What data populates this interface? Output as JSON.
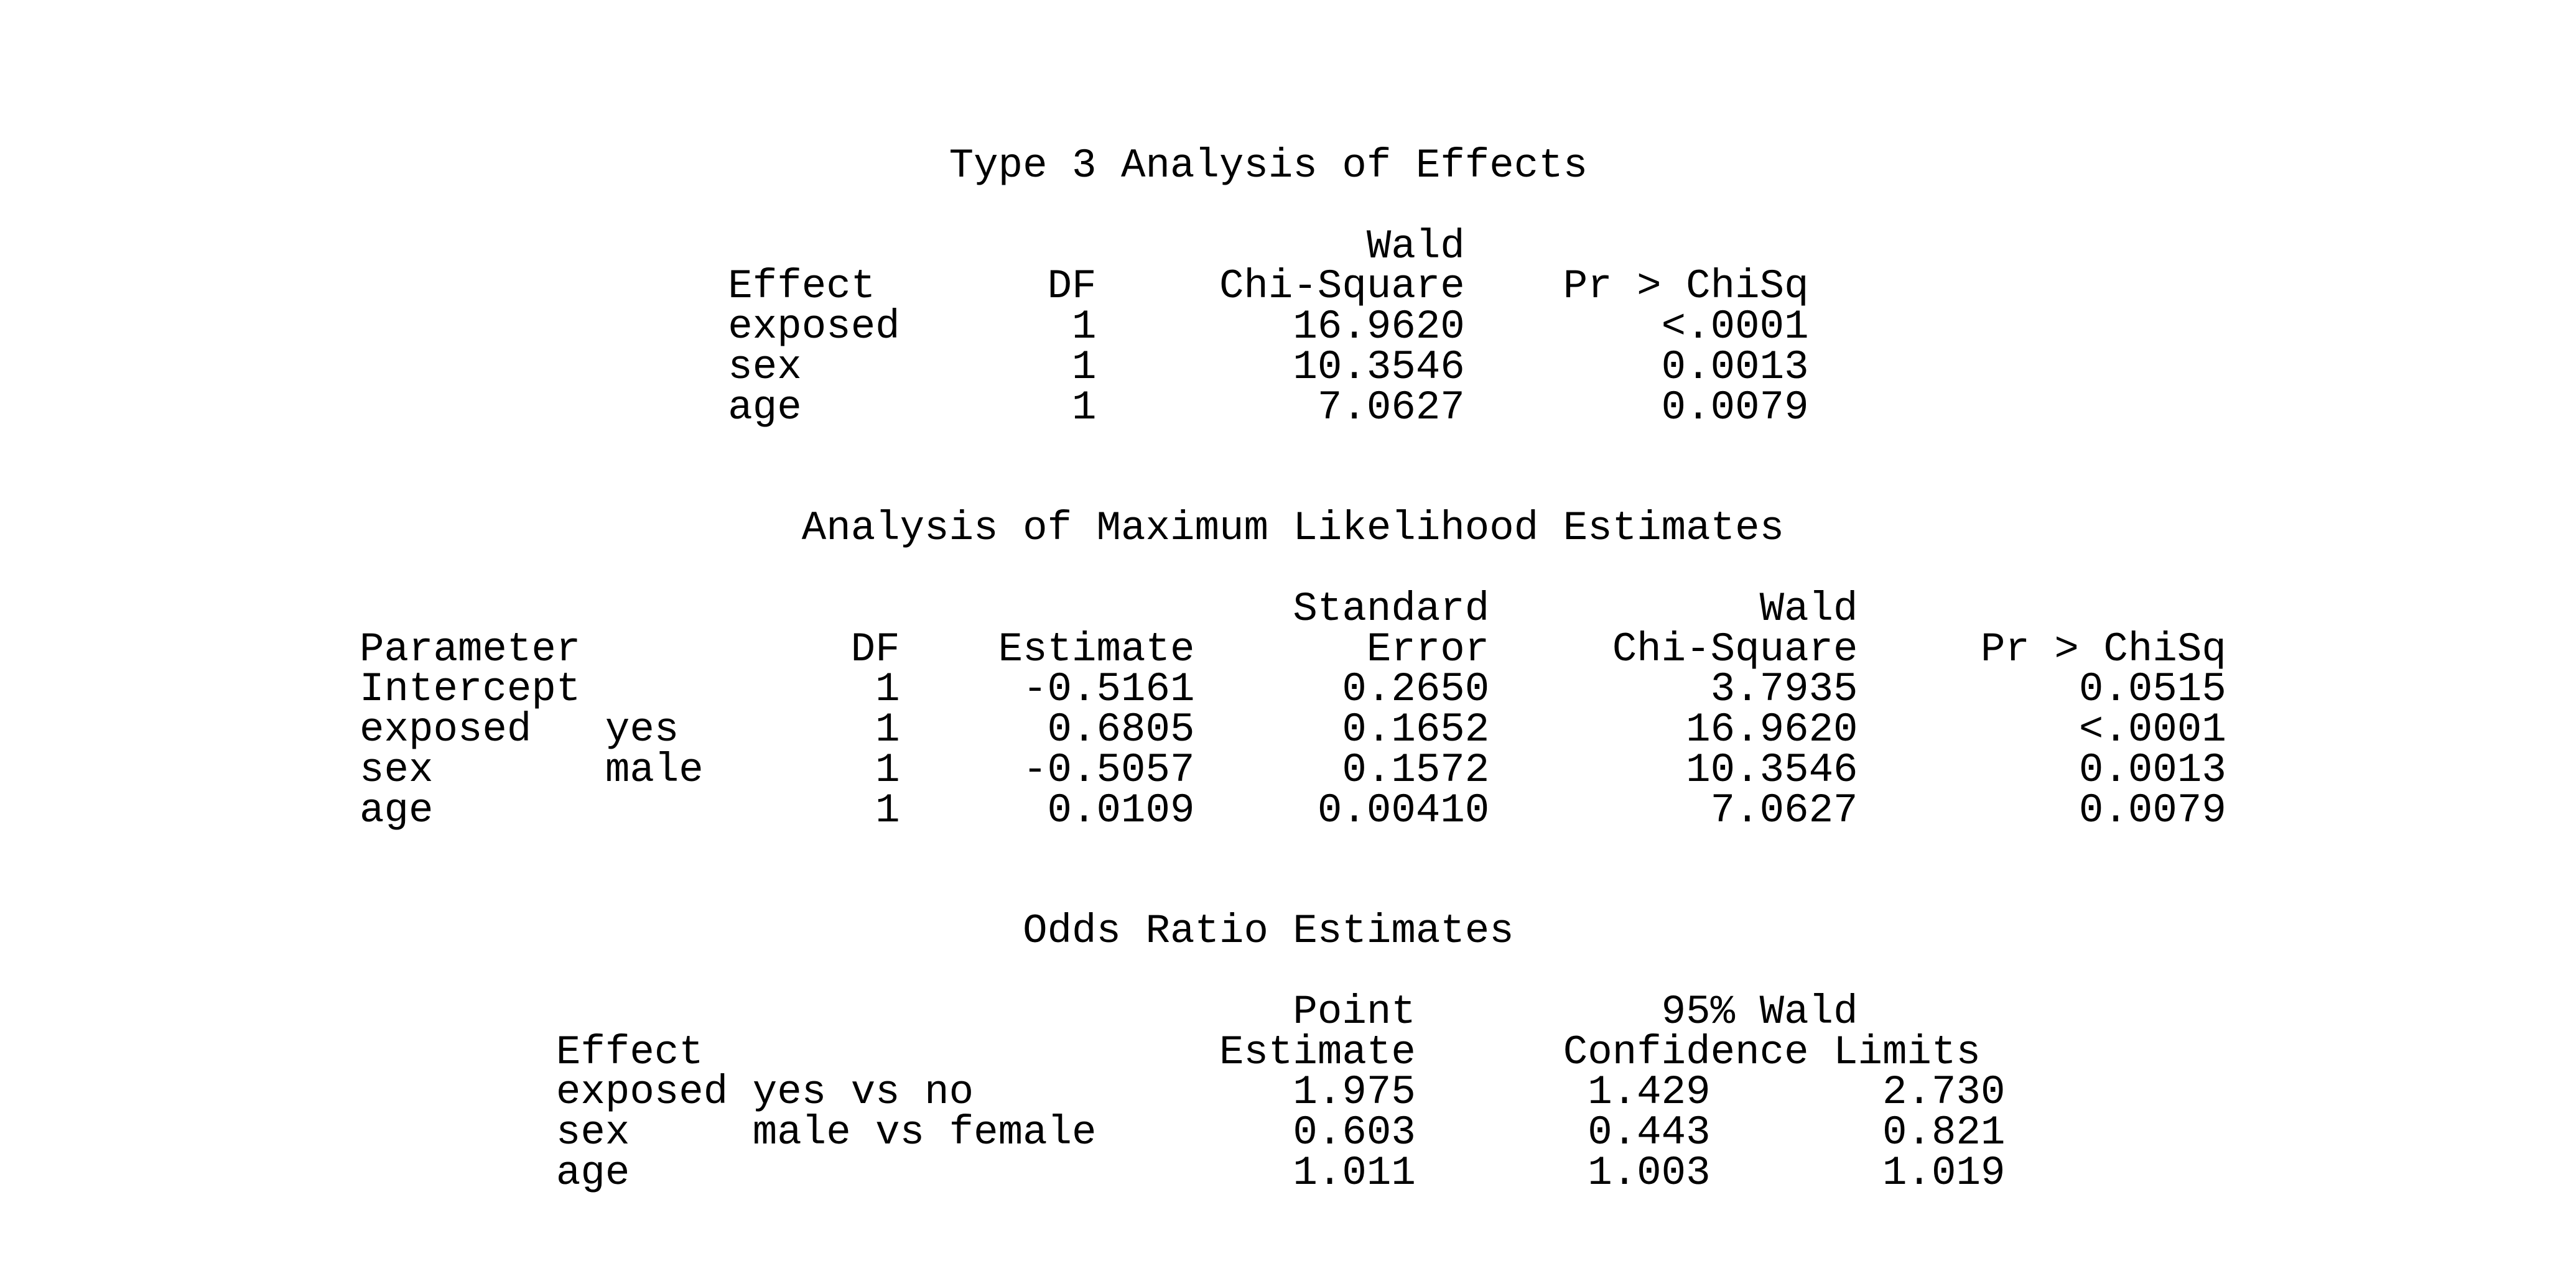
{
  "page": {
    "background_color": "#ffffff",
    "text_color": "#000000"
  },
  "tables": [
    {
      "title": "Type 3 Analysis of Effects",
      "header_top": {
        "wald": "Wald"
      },
      "headers": [
        "Effect",
        "DF",
        "Chi-Square",
        "Pr > ChiSq"
      ],
      "rows": [
        [
          "exposed",
          "1",
          "16.9620",
          "<.0001"
        ],
        [
          "sex",
          "1",
          "10.3546",
          "0.0013"
        ],
        [
          "age",
          "1",
          "7.0627",
          "0.0079"
        ]
      ]
    },
    {
      "title": "Analysis of Maximum Likelihood Estimates",
      "header_top": {
        "standard": "Standard",
        "wald": "Wald"
      },
      "headers": [
        "Parameter",
        "DF",
        "Estimate",
        "Error",
        "Chi-Square",
        "Pr > ChiSq"
      ],
      "rows": [
        [
          "Intercept",
          "",
          "1",
          "-0.5161",
          "0.2650",
          "3.7935",
          "0.0515"
        ],
        [
          "exposed",
          "yes",
          "1",
          "0.6805",
          "0.1652",
          "16.9620",
          "<.0001"
        ],
        [
          "sex",
          "male",
          "1",
          "-0.5057",
          "0.1572",
          "10.3546",
          "0.0013"
        ],
        [
          "age",
          "",
          "1",
          "0.0109",
          "0.00410",
          "7.0627",
          "0.0079"
        ]
      ]
    },
    {
      "title": "Odds Ratio Estimates",
      "header_top": {
        "point": "Point",
        "wald95": "95% Wald"
      },
      "headers": [
        "Effect",
        "Estimate",
        "Confidence Limits"
      ],
      "rows": [
        [
          "exposed",
          "yes vs no",
          "1.975",
          "1.429",
          "2.730"
        ],
        [
          "sex",
          "male vs female",
          "0.603",
          "0.443",
          "0.821"
        ],
        [
          "age",
          "",
          "1.011",
          "1.003",
          "1.019"
        ]
      ]
    }
  ]
}
